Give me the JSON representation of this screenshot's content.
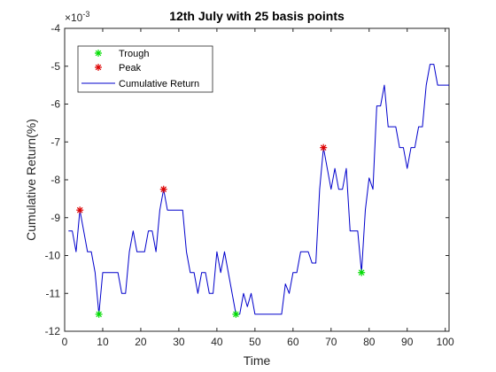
{
  "chart_data": {
    "type": "line",
    "title": "12th July with 25 basis points",
    "xlabel": "Time",
    "ylabel": "Cumulative Return(%)",
    "y_exponent_label": "×10",
    "y_exponent_power": "-3",
    "xlim": [
      0,
      101
    ],
    "ylim": [
      -12,
      -4
    ],
    "x_ticks": [
      0,
      10,
      20,
      30,
      40,
      50,
      60,
      70,
      80,
      90,
      100
    ],
    "y_ticks": [
      -12,
      -11,
      -10,
      -9,
      -8,
      -7,
      -6,
      -5,
      -4
    ],
    "grid": false,
    "legend_position": "top-left",
    "colors": {
      "line": "#0000cc",
      "trough": "#00dd00",
      "peak": "#dd0000",
      "axis": "#262626"
    },
    "series": [
      {
        "name": "Cumulative Return",
        "x": [
          1,
          2,
          3,
          4,
          5,
          6,
          7,
          8,
          9,
          10,
          11,
          12,
          13,
          14,
          15,
          16,
          17,
          18,
          19,
          20,
          21,
          22,
          23,
          24,
          25,
          26,
          27,
          28,
          29,
          30,
          31,
          32,
          33,
          34,
          35,
          36,
          37,
          38,
          39,
          40,
          41,
          42,
          43,
          44,
          45,
          46,
          47,
          48,
          49,
          50,
          51,
          52,
          53,
          54,
          55,
          56,
          57,
          58,
          59,
          60,
          61,
          62,
          63,
          64,
          65,
          66,
          67,
          68,
          69,
          70,
          71,
          72,
          73,
          74,
          75,
          76,
          77,
          78,
          79,
          80,
          81,
          82,
          83,
          84,
          85,
          86,
          87,
          88,
          89,
          90,
          91,
          92,
          93,
          94,
          95,
          96,
          97,
          98,
          99,
          100,
          101
        ],
        "values": [
          -9.35,
          -9.35,
          -9.9,
          -8.8,
          -9.35,
          -9.9,
          -9.9,
          -10.45,
          -11.55,
          -10.45,
          -10.45,
          -10.45,
          -10.45,
          -10.45,
          -11.0,
          -11.0,
          -9.9,
          -9.35,
          -9.9,
          -9.9,
          -9.9,
          -9.35,
          -9.35,
          -9.9,
          -8.8,
          -8.25,
          -8.8,
          -8.8,
          -8.8,
          -8.8,
          -8.8,
          -9.9,
          -10.45,
          -10.45,
          -11.0,
          -10.45,
          -10.45,
          -11.0,
          -11.0,
          -9.9,
          -10.45,
          -9.9,
          -10.45,
          -11.0,
          -11.55,
          -11.55,
          -11.0,
          -11.35,
          -11.0,
          -11.55,
          -11.55,
          -11.55,
          -11.55,
          -11.55,
          -11.55,
          -11.55,
          -11.55,
          -10.75,
          -11.0,
          -10.45,
          -10.45,
          -9.9,
          -9.9,
          -9.9,
          -10.2,
          -10.2,
          -8.25,
          -7.15,
          -7.7,
          -8.25,
          -7.7,
          -8.25,
          -8.25,
          -7.7,
          -9.35,
          -9.35,
          -9.35,
          -10.45,
          -8.8,
          -7.95,
          -8.25,
          -6.05,
          -6.05,
          -5.5,
          -6.6,
          -6.6,
          -6.6,
          -7.15,
          -7.15,
          -7.7,
          -7.15,
          -7.15,
          -6.6,
          -6.6,
          -5.5,
          -4.95,
          -4.95,
          -5.5,
          -5.5,
          -5.5,
          -5.5
        ]
      },
      {
        "name": "Trough",
        "x": [
          9,
          45,
          78
        ],
        "values": [
          -11.55,
          -11.55,
          -10.45
        ]
      },
      {
        "name": "Peak",
        "x": [
          4,
          26,
          68
        ],
        "values": [
          -8.8,
          -8.25,
          -7.15
        ]
      }
    ]
  }
}
